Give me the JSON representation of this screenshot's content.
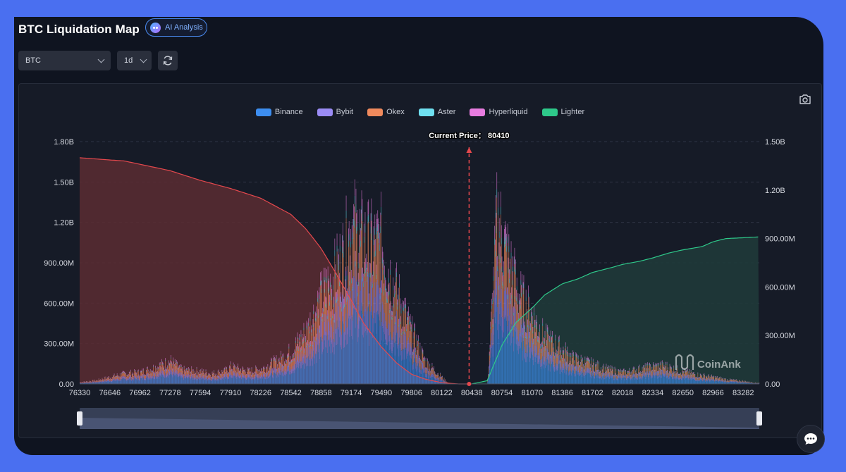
{
  "header": {
    "title": "BTC Liquidation Map",
    "ai_button_label": "AI Analysis"
  },
  "controls": {
    "symbol_select": "BTC",
    "timeframe_select": "1d"
  },
  "colors": {
    "binance": "#3d8ef0",
    "bybit": "#9b8cf5",
    "okex": "#f08a5d",
    "aster": "#6fe0f0",
    "hyperliquid": "#e87ce0",
    "lighter": "#2ec98a",
    "short_cum": "#e5484d",
    "long_cum": "#2ec98a",
    "current_price_line": "#e5484d"
  },
  "icons": {
    "camera": "camera-icon",
    "refresh": "refresh-icon",
    "chat": "chat-icon",
    "ai": "ai-robot-icon"
  },
  "chart_data": {
    "type": "bar",
    "legend": [
      "Binance",
      "Bybit",
      "Okex",
      "Aster",
      "Hyperliquid",
      "Lighter"
    ],
    "legend_position": "top-center",
    "current_price_label": "Current Price： 80410",
    "current_price": 80410,
    "watermark": "CoinAnk",
    "x_ticks": [
      "76330",
      "76646",
      "76962",
      "77278",
      "77594",
      "77910",
      "78226",
      "78542",
      "78858",
      "79174",
      "79490",
      "79806",
      "80122",
      "80438",
      "80754",
      "81070",
      "81386",
      "81702",
      "82018",
      "82334",
      "82650",
      "82966",
      "83282"
    ],
    "x_range": [
      76330,
      83450
    ],
    "y_left_ticks": [
      "0.00",
      "300.00M",
      "600.00M",
      "900.00M",
      "1.20B",
      "1.50B",
      "1.80B"
    ],
    "y_left_range": [
      0,
      1800000000
    ],
    "y_right_ticks": [
      "0.00",
      "300.00M",
      "600.00M",
      "900.00M",
      "1.20B",
      "1.50B"
    ],
    "y_right_range": [
      0,
      1500000000
    ],
    "grid": true,
    "bar_profile": {
      "price": [
        76330,
        76500,
        76646,
        76800,
        76962,
        77100,
        77200,
        77278,
        77400,
        77594,
        77700,
        77850,
        77910,
        78100,
        78226,
        78400,
        78542,
        78700,
        78858,
        79000,
        79100,
        79174,
        79300,
        79400,
        79490,
        79600,
        79700,
        79806,
        79950,
        80050,
        80122,
        80200,
        80438,
        80600,
        80650,
        80700,
        80754,
        80850,
        80950,
        81070,
        81200,
        81386,
        81500,
        81702,
        81850,
        82018,
        82200,
        82334,
        82450,
        82550,
        82650,
        82800,
        82966,
        83100,
        83282,
        83400
      ],
      "total_liquidation": [
        15000000,
        30000000,
        60000000,
        90000000,
        100000000,
        140000000,
        170000000,
        200000000,
        120000000,
        110000000,
        90000000,
        110000000,
        150000000,
        110000000,
        130000000,
        200000000,
        280000000,
        450000000,
        750000000,
        950000000,
        1150000000,
        1400000000,
        1250000000,
        1200000000,
        1250000000,
        900000000,
        700000000,
        450000000,
        200000000,
        120000000,
        60000000,
        0,
        0,
        0,
        700000000,
        1450000000,
        1300000000,
        1000000000,
        750000000,
        600000000,
        400000000,
        300000000,
        220000000,
        170000000,
        130000000,
        100000000,
        130000000,
        150000000,
        160000000,
        130000000,
        110000000,
        80000000,
        60000000,
        40000000,
        25000000,
        10000000
      ]
    },
    "short_cumulative": {
      "price": [
        76330,
        76800,
        77278,
        77594,
        77910,
        78226,
        78542,
        78700,
        78858,
        79000,
        79174,
        79300,
        79490,
        79650,
        79806,
        79950,
        80122,
        80300,
        80438
      ],
      "value": [
        1400000000,
        1380000000,
        1320000000,
        1260000000,
        1210000000,
        1150000000,
        1050000000,
        960000000,
        840000000,
        700000000,
        520000000,
        380000000,
        230000000,
        130000000,
        60000000,
        30000000,
        8000000,
        0,
        0
      ]
    },
    "long_cumulative": {
      "price": [
        80438,
        80600,
        80754,
        80900,
        81070,
        81200,
        81386,
        81550,
        81702,
        81900,
        82018,
        82200,
        82334,
        82500,
        82650,
        82850,
        82966,
        83100,
        83282,
        83450
      ],
      "value": [
        0,
        20000000,
        240000000,
        380000000,
        470000000,
        550000000,
        620000000,
        650000000,
        690000000,
        720000000,
        740000000,
        760000000,
        780000000,
        810000000,
        830000000,
        850000000,
        880000000,
        900000000,
        905000000,
        910000000
      ]
    }
  }
}
